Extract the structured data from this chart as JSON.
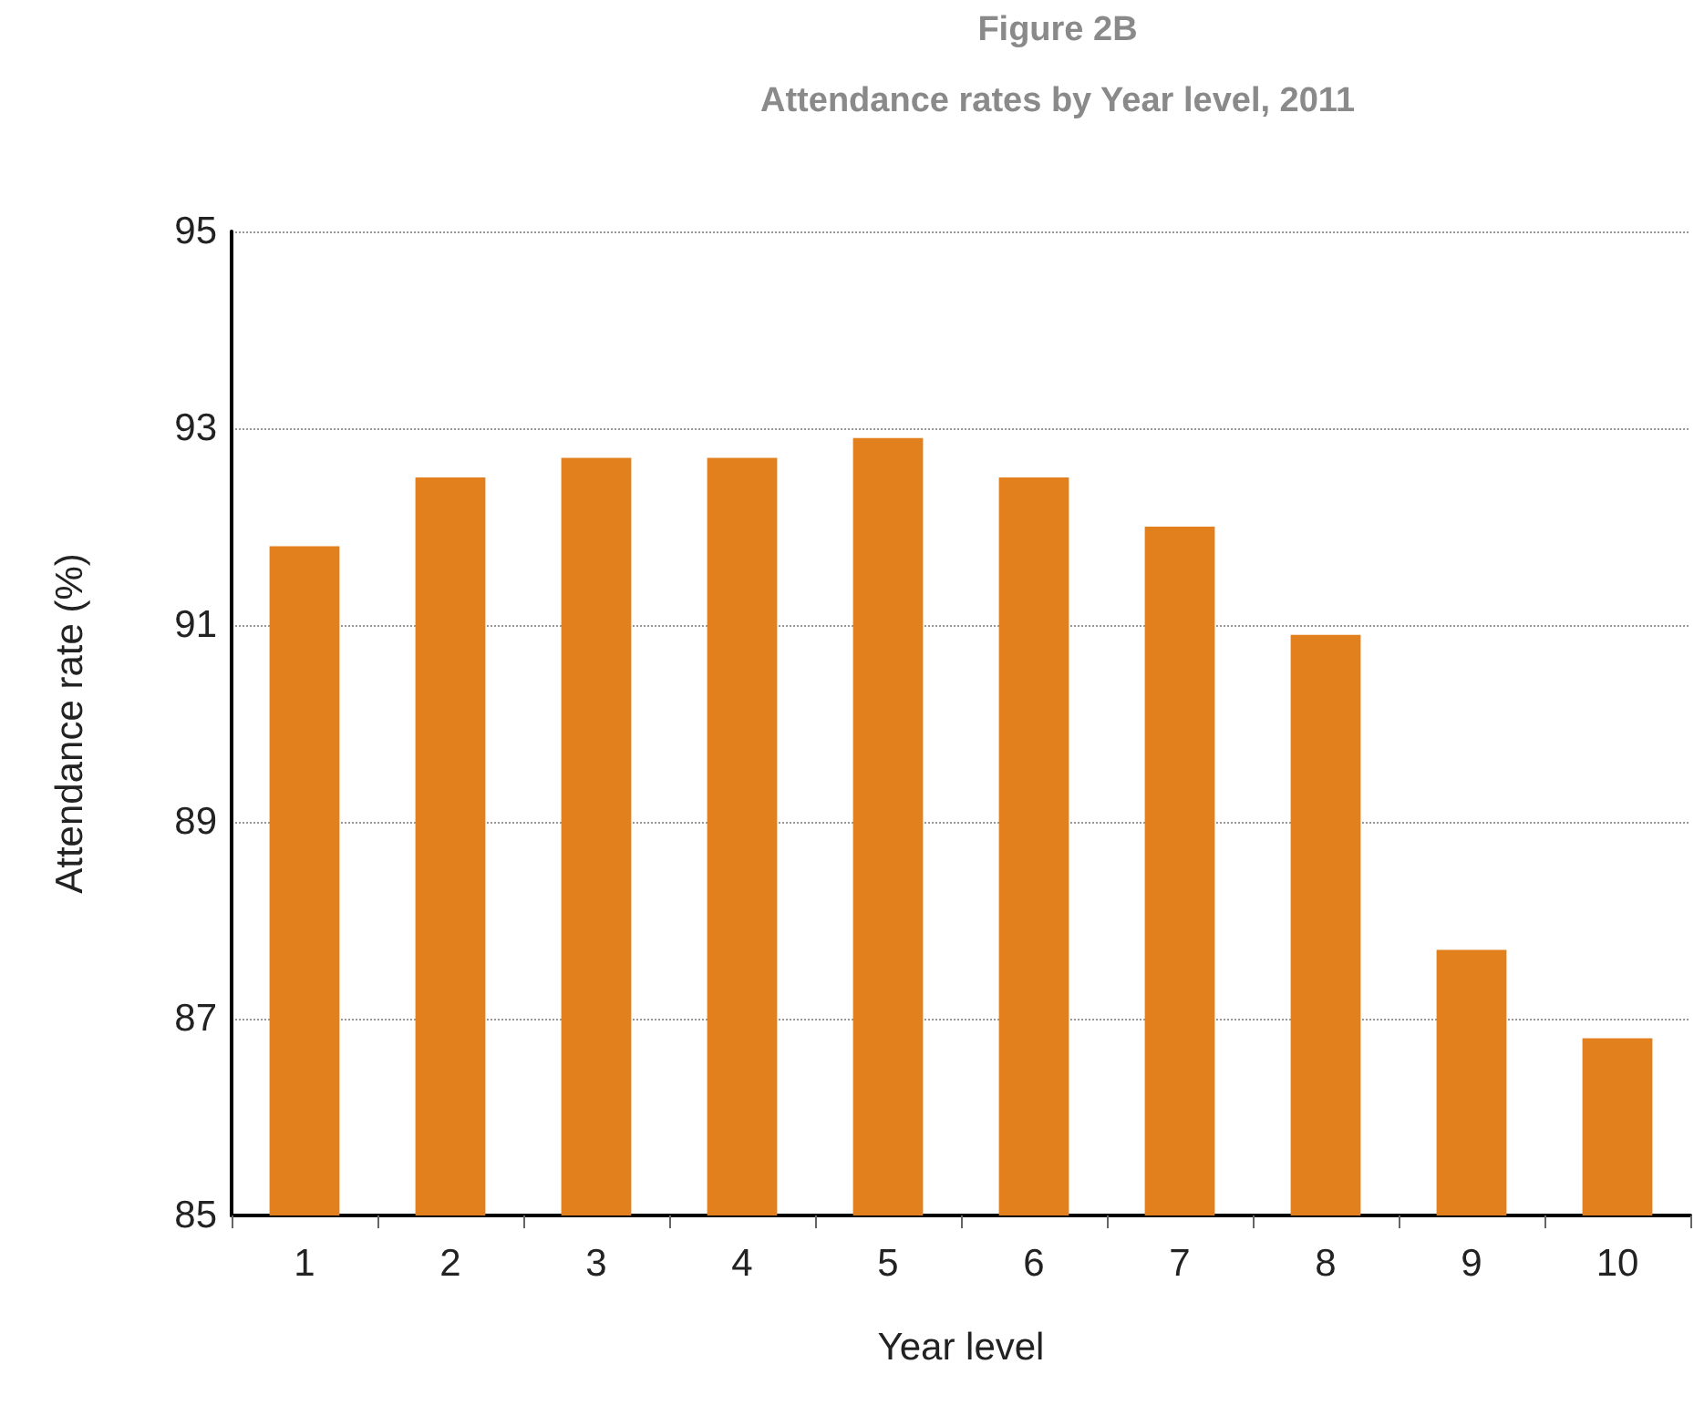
{
  "chart_data": {
    "type": "bar",
    "title": "Figure 2B",
    "subtitle": "Attendance rates by Year level, 2011",
    "xlabel": "Year level",
    "ylabel": "Attendance rate (%)",
    "categories": [
      "1",
      "2",
      "3",
      "4",
      "5",
      "6",
      "7",
      "8",
      "9",
      "10"
    ],
    "values": [
      91.8,
      92.5,
      92.7,
      92.7,
      92.9,
      92.5,
      92.0,
      90.9,
      87.7,
      86.8
    ],
    "color": "#e3801e",
    "ylim": [
      85,
      95
    ],
    "yticks": [
      85,
      87,
      89,
      91,
      93,
      95
    ],
    "grid": "y"
  }
}
